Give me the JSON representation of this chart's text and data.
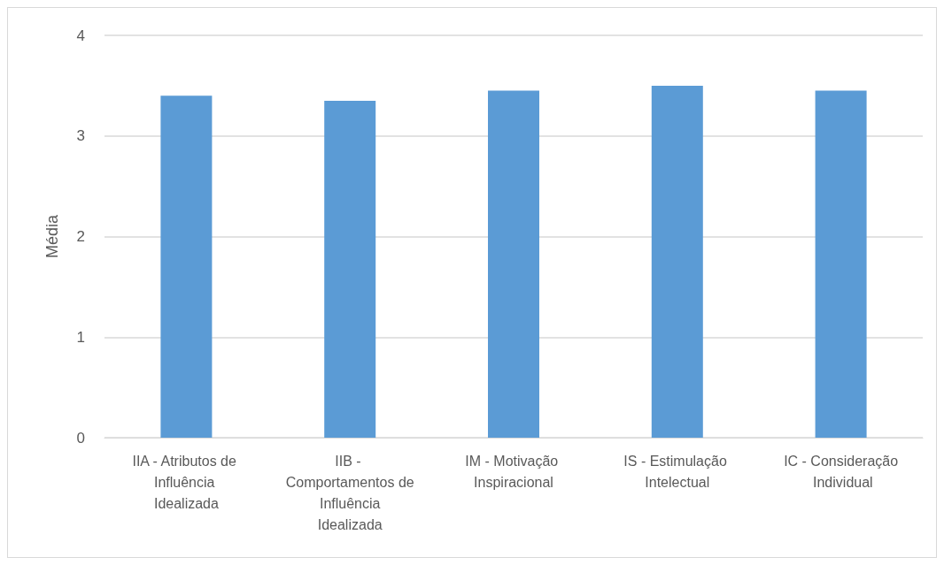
{
  "chart_data": {
    "type": "bar",
    "ylabel": "Média",
    "categories": [
      "IIA - Atributos de Influência Idealizada",
      "IIB - Comportamentos de Influência Idealizada",
      "IM - Motivação Inspiracional",
      "IS - Estimulação Intelectual",
      "IC - Consideração Individual"
    ],
    "values": [
      3.4,
      3.35,
      3.45,
      3.5,
      3.45
    ],
    "color": "#5b9bd5",
    "ylim": [
      0,
      4
    ],
    "yticks": [
      0,
      1,
      2,
      3,
      4
    ],
    "grid": "y"
  }
}
